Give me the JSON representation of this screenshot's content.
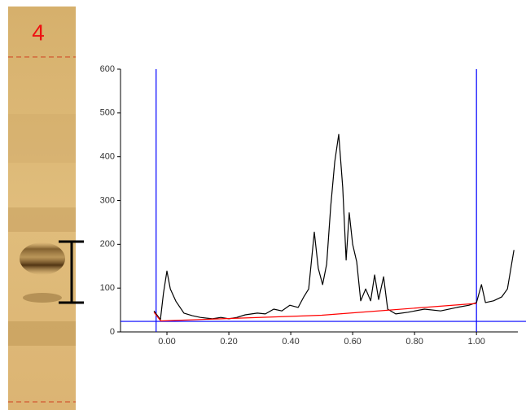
{
  "lane_label": "4",
  "chart_data": {
    "type": "line",
    "xlim": [
      -0.15,
      1.16
    ],
    "ylim": [
      0,
      600
    ],
    "xticks": [
      {
        "value": 0,
        "label": "0.00"
      },
      {
        "value": 0.2,
        "label": "0.20"
      },
      {
        "value": 0.4,
        "label": "0.40"
      },
      {
        "value": 0.6,
        "label": "0.60"
      },
      {
        "value": 0.8,
        "label": "0.80"
      },
      {
        "value": 1.0,
        "label": "1.00"
      }
    ],
    "yticks": [
      0,
      100,
      200,
      300,
      400,
      500,
      600
    ],
    "reference_lines": {
      "color": "#0000ff",
      "x": [
        -0.035,
        1.0
      ],
      "y": [
        24
      ]
    },
    "series": [
      {
        "color": "#000000",
        "x": [
          -0.042,
          -0.021,
          -0.011,
          0.0,
          0.011,
          0.029,
          0.055,
          0.082,
          0.108,
          0.147,
          0.174,
          0.2,
          0.226,
          0.253,
          0.292,
          0.318,
          0.345,
          0.371,
          0.397,
          0.424,
          0.442,
          0.458,
          0.476,
          0.489,
          0.503,
          0.516,
          0.529,
          0.542,
          0.555,
          0.568,
          0.579,
          0.589,
          0.6,
          0.613,
          0.626,
          0.642,
          0.658,
          0.671,
          0.684,
          0.7,
          0.713,
          0.739,
          0.779,
          0.832,
          0.884,
          0.937,
          0.976,
          1.0,
          1.016,
          1.029,
          1.055,
          1.082,
          1.1,
          1.121
        ],
        "values": [
          48,
          28,
          89,
          139,
          98,
          70,
          43,
          37,
          33,
          30,
          33,
          30,
          33,
          39,
          43,
          41,
          52,
          48,
          61,
          56,
          80,
          98,
          228,
          145,
          108,
          155,
          285,
          388,
          451,
          330,
          164,
          272,
          200,
          160,
          71,
          98,
          71,
          130,
          74,
          126,
          52,
          41,
          45,
          52,
          48,
          56,
          61,
          67,
          108,
          67,
          71,
          80,
          98,
          187
        ]
      },
      {
        "color": "#ff0000",
        "x": [
          -0.042,
          -0.02,
          0.5,
          1.0
        ],
        "values": [
          45,
          25,
          38,
          65
        ]
      }
    ]
  }
}
